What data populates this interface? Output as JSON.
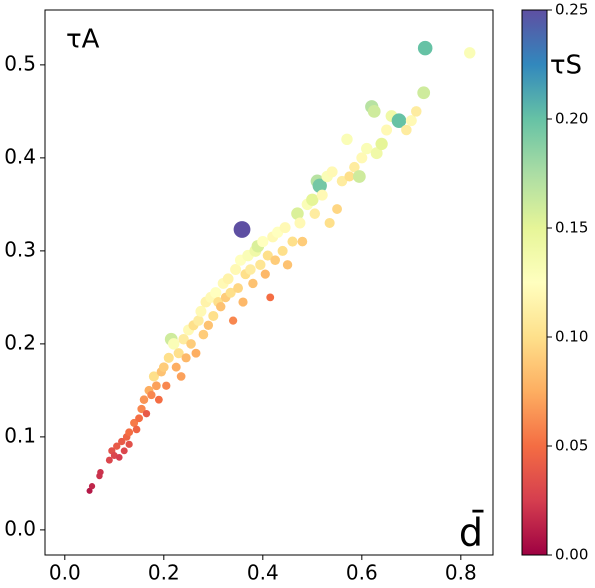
{
  "chart_data": {
    "type": "scatter",
    "ylabel": "τA",
    "xlabel": "d̄",
    "colorbar_label": "τS",
    "colormap": "Spectral",
    "x": [
      0.05,
      0.055,
      0.07,
      0.072,
      0.09,
      0.095,
      0.1,
      0.105,
      0.11,
      0.115,
      0.12,
      0.125,
      0.13,
      0.13,
      0.14,
      0.145,
      0.15,
      0.155,
      0.16,
      0.165,
      0.17,
      0.175,
      0.18,
      0.185,
      0.19,
      0.195,
      0.2,
      0.205,
      0.21,
      0.215,
      0.22,
      0.225,
      0.23,
      0.235,
      0.24,
      0.245,
      0.25,
      0.255,
      0.26,
      0.265,
      0.27,
      0.275,
      0.28,
      0.285,
      0.29,
      0.295,
      0.3,
      0.305,
      0.31,
      0.315,
      0.32,
      0.325,
      0.33,
      0.335,
      0.34,
      0.345,
      0.35,
      0.355,
      0.358,
      0.36,
      0.365,
      0.37,
      0.375,
      0.38,
      0.385,
      0.39,
      0.395,
      0.4,
      0.405,
      0.41,
      0.415,
      0.42,
      0.425,
      0.43,
      0.44,
      0.445,
      0.45,
      0.46,
      0.47,
      0.475,
      0.48,
      0.49,
      0.5,
      0.505,
      0.51,
      0.515,
      0.52,
      0.53,
      0.535,
      0.54,
      0.55,
      0.56,
      0.57,
      0.575,
      0.585,
      0.595,
      0.6,
      0.61,
      0.62,
      0.625,
      0.63,
      0.64,
      0.65,
      0.66,
      0.675,
      0.69,
      0.7,
      0.71,
      0.725,
      0.728,
      0.818
    ],
    "values": [
      0.042,
      0.047,
      0.058,
      0.062,
      0.075,
      0.085,
      0.08,
      0.09,
      0.078,
      0.095,
      0.085,
      0.1,
      0.105,
      0.092,
      0.115,
      0.108,
      0.12,
      0.13,
      0.14,
      0.125,
      0.15,
      0.145,
      0.165,
      0.155,
      0.14,
      0.17,
      0.175,
      0.155,
      0.185,
      0.205,
      0.2,
      0.175,
      0.19,
      0.165,
      0.205,
      0.185,
      0.215,
      0.2,
      0.22,
      0.19,
      0.225,
      0.235,
      0.21,
      0.245,
      0.22,
      0.25,
      0.23,
      0.255,
      0.245,
      0.24,
      0.265,
      0.25,
      0.27,
      0.255,
      0.225,
      0.28,
      0.26,
      0.29,
      0.323,
      0.245,
      0.275,
      0.295,
      0.28,
      0.265,
      0.3,
      0.305,
      0.285,
      0.31,
      0.275,
      0.295,
      0.25,
      0.315,
      0.29,
      0.32,
      0.3,
      0.325,
      0.285,
      0.31,
      0.34,
      0.33,
      0.31,
      0.35,
      0.355,
      0.34,
      0.375,
      0.37,
      0.36,
      0.38,
      0.33,
      0.385,
      0.345,
      0.375,
      0.42,
      0.38,
      0.39,
      0.38,
      0.4,
      0.41,
      0.455,
      0.45,
      0.405,
      0.415,
      0.43,
      0.445,
      0.44,
      0.43,
      0.44,
      0.45,
      0.47,
      0.518,
      0.513
    ],
    "c": [
      0.01,
      0.015,
      0.02,
      0.02,
      0.03,
      0.035,
      0.03,
      0.04,
      0.025,
      0.04,
      0.03,
      0.045,
      0.05,
      0.035,
      0.055,
      0.045,
      0.05,
      0.06,
      0.065,
      0.04,
      0.075,
      0.06,
      0.1,
      0.07,
      0.05,
      0.085,
      0.09,
      0.06,
      0.1,
      0.16,
      0.13,
      0.075,
      0.1,
      0.07,
      0.11,
      0.08,
      0.12,
      0.09,
      0.1,
      0.075,
      0.11,
      0.12,
      0.09,
      0.115,
      0.085,
      0.12,
      0.1,
      0.125,
      0.1,
      0.085,
      0.12,
      0.09,
      0.115,
      0.1,
      0.06,
      0.12,
      0.095,
      0.125,
      0.25,
      0.08,
      0.1,
      0.13,
      0.11,
      0.085,
      0.14,
      0.155,
      0.105,
      0.125,
      0.08,
      0.1,
      0.05,
      0.12,
      0.09,
      0.125,
      0.1,
      0.12,
      0.085,
      0.1,
      0.155,
      0.12,
      0.09,
      0.13,
      0.15,
      0.11,
      0.17,
      0.195,
      0.12,
      0.13,
      0.1,
      0.12,
      0.095,
      0.11,
      0.13,
      0.1,
      0.11,
      0.16,
      0.12,
      0.13,
      0.17,
      0.16,
      0.14,
      0.15,
      0.12,
      0.14,
      0.2,
      0.11,
      0.12,
      0.11,
      0.16,
      0.2,
      0.13
    ],
    "xlim": [
      -0.04,
      0.865
    ],
    "ylim": [
      -0.027,
      0.559
    ],
    "clim": [
      0,
      0.25
    ],
    "xticks": [
      {
        "value": 0,
        "label": "0.0"
      },
      {
        "value": 0.2,
        "label": "0.2"
      },
      {
        "value": 0.4,
        "label": "0.4"
      },
      {
        "value": 0.6,
        "label": "0.6"
      },
      {
        "value": 0.8,
        "label": "0.8"
      }
    ],
    "yticks": [
      {
        "value": 0,
        "label": "0.0"
      },
      {
        "value": 0.1,
        "label": "0.1"
      },
      {
        "value": 0.2,
        "label": "0.2"
      },
      {
        "value": 0.3,
        "label": "0.3"
      },
      {
        "value": 0.4,
        "label": "0.4"
      },
      {
        "value": 0.5,
        "label": "0.5"
      }
    ],
    "cticks": [
      {
        "value": 0,
        "label": "0.00"
      },
      {
        "value": 0.05,
        "label": "0.05"
      },
      {
        "value": 0.1,
        "label": "0.10"
      },
      {
        "value": 0.15,
        "label": "0.15"
      },
      {
        "value": 0.2,
        "label": "0.20"
      },
      {
        "value": 0.25,
        "label": "0.25"
      }
    ]
  }
}
